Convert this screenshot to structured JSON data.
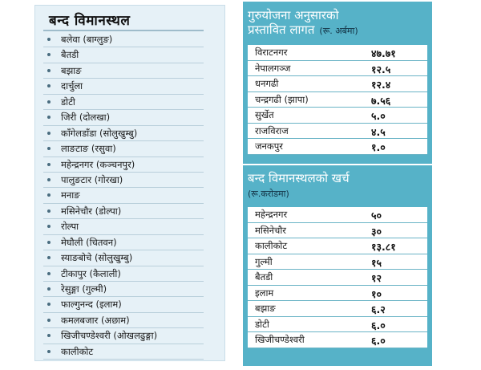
{
  "closed_airports": {
    "title": "बन्द विमानस्थल",
    "items": [
      "बलेवा (बाग्लुङ)",
      "बैतडी",
      "बझाङ",
      "दार्चुला",
      "डोटी",
      "जिरी (दोलखा)",
      "काँगेलडाँडा (सोलुखुम्बु)",
      "लाङटाङ (रसुवा)",
      "महेन्द्रनगर (कञ्चनपुर)",
      "पालुङटार (गोरखा)",
      "मनाङ",
      "मसिनेचौर (डोल्पा)",
      "रोल्पा",
      "मेघौली (चितवन)",
      "स्याङबोचे (सोलुखुम्बु)",
      "टीकापुर (कैलाली)",
      "रेसुङ्गा (गुल्मी)",
      "फाल्गुनन्द (इलाम)",
      "कमलबजार (अछाम)",
      "खिजीचण्डेश्वरी (ओखलढुङ्गा)",
      "कालीकोट"
    ]
  },
  "proposed_cost": {
    "title_line1": "गुरुयोजना अनुसारको",
    "title_line2": "प्रस्तावित लागत",
    "unit": "(रू. अर्बमा)",
    "rows": [
      {
        "label": "विराटनगर",
        "value": "४७.७१"
      },
      {
        "label": "नेपालगञ्ज",
        "value": "१२.५"
      },
      {
        "label": "धनगढी",
        "value": "१२.४"
      },
      {
        "label": "चन्द्रगढी (झापा)",
        "value": "७.५६"
      },
      {
        "label": "सुर्खेत",
        "value": "५.०"
      },
      {
        "label": "राजविराज",
        "value": "४.५"
      },
      {
        "label": "जनकपुर",
        "value": "१.०"
      }
    ]
  },
  "closed_spending": {
    "title": "बन्द विमानस्थलको खर्च",
    "unit": "(रू.करोडमा)",
    "rows": [
      {
        "label": "महेन्द्रनगर",
        "value": "५०"
      },
      {
        "label": "मसिनेचौर",
        "value": "३०"
      },
      {
        "label": "कालीकोट",
        "value": "१३.८१"
      },
      {
        "label": "गुल्मी",
        "value": "१५"
      },
      {
        "label": "बैतडी",
        "value": "१२"
      },
      {
        "label": "इलाम",
        "value": "१०"
      },
      {
        "label": "बझाङ",
        "value": "६.२"
      },
      {
        "label": "डोटी",
        "value": "६.०"
      },
      {
        "label": "खिजीचण्डेश्वरी",
        "value": "६.०"
      }
    ]
  }
}
